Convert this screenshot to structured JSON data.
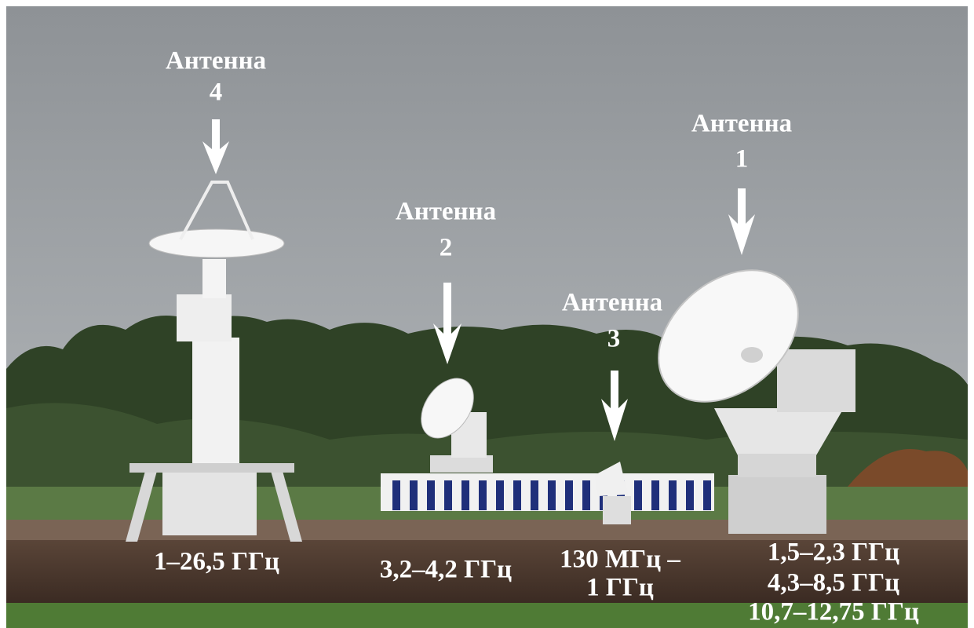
{
  "antennas": [
    {
      "label": "Антенна",
      "number": "4",
      "frequency": [
        "1–26,5 ГГц"
      ]
    },
    {
      "label": "Антенна",
      "number": "2",
      "frequency": [
        "3,2–4,2 ГГц"
      ]
    },
    {
      "label": "Антенна",
      "number": "3",
      "frequency": [
        "130 МГц –",
        "1 ГГц"
      ]
    },
    {
      "label": "Антенна",
      "number": "1",
      "frequency": [
        "1,5–2,3 ГГц",
        "4,3–8,5 ГГц",
        "10,7–12,75 ГГц"
      ]
    }
  ]
}
